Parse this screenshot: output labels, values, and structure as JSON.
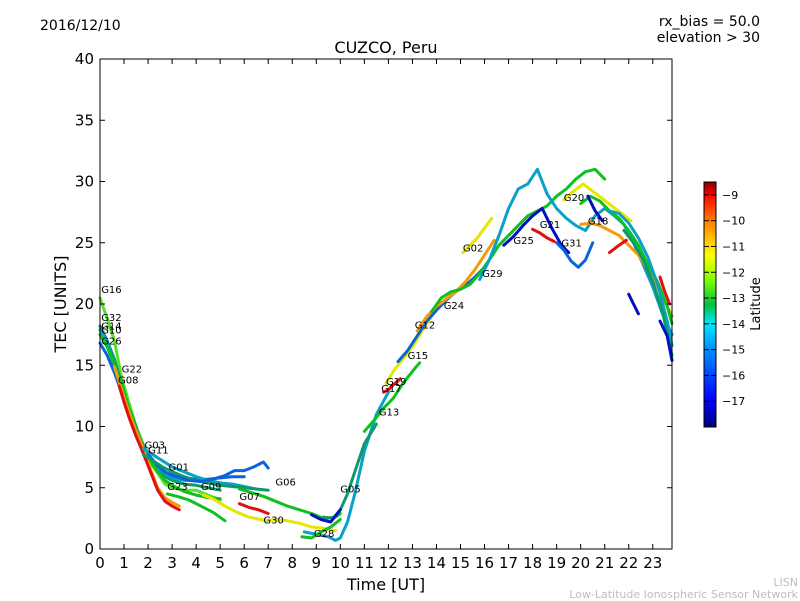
{
  "header": {
    "date": "2016/12/10",
    "note_line1": "rx_bias = 50.0",
    "note_line2": "elevation > 30"
  },
  "credits": {
    "line1": "LISN",
    "line2": "Low-Latitude Ionospheric Sensor Network"
  },
  "chart_data": {
    "type": "line",
    "title": "CUZCO, Peru",
    "xlabel": "Time [UT]",
    "ylabel": "TEC [UNITS]",
    "xlim": [
      0,
      23.8
    ],
    "ylim": [
      0,
      40
    ],
    "xticks": [
      0,
      1,
      2,
      3,
      4,
      5,
      6,
      7,
      8,
      9,
      10,
      11,
      12,
      13,
      14,
      15,
      16,
      17,
      18,
      19,
      20,
      21,
      22,
      23
    ],
    "yticks": [
      0,
      5,
      10,
      15,
      20,
      25,
      30,
      35,
      40
    ],
    "grid": false,
    "colorbar": {
      "label": "Latitude",
      "min": -18,
      "max": -8.5,
      "ticks": [
        -9,
        -10,
        -11,
        -12,
        -13,
        -14,
        -15,
        -16,
        -17
      ],
      "colormap": [
        "#00007f",
        "#0000ff",
        "#007fff",
        "#00ffff",
        "#7fff7f",
        "#ffff00",
        "#ff7f00",
        "#ff0000",
        "#7f0000"
      ]
    },
    "colors": {
      "dark_blue": "#0010c0",
      "blue": "#0a64d8",
      "cyan": "#0aa0c8",
      "teal": "#0c9a6a",
      "green": "#10c020",
      "lime": "#5ae02a",
      "yellow": "#e6e600",
      "orange": "#f59a0a",
      "red": "#e01010"
    },
    "series": [
      {
        "name": "G16",
        "color": "#5ae02a",
        "x": [
          0,
          0.3,
          0.6,
          0.9,
          1.2,
          1.5,
          1.8,
          2.1,
          2.4,
          2.7,
          3.0,
          3.5,
          4.0,
          4.5,
          5.0
        ],
        "y": [
          20.5,
          18.8,
          17,
          14,
          12,
          10,
          8.5,
          7,
          6.2,
          5.3,
          5.0,
          4.8,
          4.8,
          4.4,
          4.0
        ]
      },
      {
        "name": "G32",
        "color": "#0c9a6a",
        "x": [
          0,
          0.3,
          0.6,
          0.9,
          1.2,
          1.5,
          1.8,
          2.1,
          2.4,
          2.7,
          3.0,
          3.5,
          4.0,
          4.5,
          5.0
        ],
        "y": [
          18.2,
          17,
          15.5,
          13.5,
          11.5,
          10,
          8.2,
          7.2,
          6.5,
          5.9,
          5.6,
          5.3,
          5.2,
          5.0,
          4.8
        ]
      },
      {
        "name": "G14",
        "color": "#0aa0c8",
        "x": [
          0,
          0.3,
          0.6,
          0.9,
          1.2,
          1.5,
          1.8,
          2.1,
          2.4,
          2.7,
          3.0,
          3.5,
          4.0,
          4.5,
          5.0,
          5.5
        ],
        "y": [
          17.9,
          16.8,
          15,
          13.2,
          11.2,
          9.8,
          8.3,
          7.3,
          6.6,
          6.2,
          5.8,
          5.6,
          5.6,
          5.4,
          5.3,
          5.2
        ]
      },
      {
        "name": "G10",
        "color": "#10c020",
        "x": [
          0,
          0.3,
          0.6,
          0.9,
          1.2,
          1.5,
          1.8,
          2.1,
          2.4,
          2.7,
          3.0,
          3.5,
          4.0,
          4.5,
          5.0
        ],
        "y": [
          17.5,
          16.5,
          15,
          13.4,
          11.5,
          9.8,
          8.5,
          7.2,
          6.3,
          5.6,
          5.2,
          4.7,
          4.4,
          4.2,
          4.1
        ]
      },
      {
        "name": "G26",
        "color": "#0a64d8",
        "x": [
          0,
          0.3,
          0.6,
          0.9,
          1.2,
          1.5,
          1.8,
          2.1,
          2.4,
          2.7,
          3.0,
          3.5,
          4.0,
          4.5,
          5.0,
          5.5,
          6.0
        ],
        "y": [
          16.8,
          15.8,
          14.4,
          12.8,
          11,
          9.5,
          8.3,
          7.5,
          6.8,
          6.3,
          6.0,
          5.8,
          5.7,
          5.7,
          5.8,
          5.9,
          5.9
        ]
      },
      {
        "name": "G22",
        "color": "#f59a0a",
        "x": [
          0.6,
          0.9,
          1.2,
          1.5,
          1.8,
          2.1,
          2.4,
          2.7,
          3.0,
          3.3
        ],
        "y": [
          14.9,
          13.0,
          11.2,
          9.6,
          8.2,
          6.5,
          5.0,
          4.2,
          3.8,
          3.5
        ]
      },
      {
        "name": "G08",
        "color": "#e01010",
        "x": [
          0.8,
          1.0,
          1.2,
          1.5,
          1.8,
          2.1,
          2.4,
          2.7,
          3.0,
          3.3
        ],
        "y": [
          13.3,
          12.0,
          10.8,
          9.2,
          7.8,
          6.3,
          4.8,
          3.9,
          3.5,
          3.2
        ]
      },
      {
        "name": "G03",
        "color": "#0aa0c8",
        "x": [
          1.8,
          2.2,
          2.6,
          3.0,
          3.5,
          4.0,
          4.5,
          5.0,
          5.5,
          6.0,
          6.5
        ],
        "y": [
          8.2,
          7.7,
          7.2,
          6.7,
          6.3,
          5.9,
          5.6,
          5.4,
          5.3,
          5.1,
          4.9
        ]
      },
      {
        "name": "G11",
        "color": "#0c9a6a",
        "x": [
          1.8,
          2.2,
          2.6,
          3.0,
          3.5,
          4.0,
          4.5,
          5.0,
          5.5,
          6.0,
          6.5,
          7.0
        ],
        "y": [
          7.7,
          7.2,
          6.7,
          6.3,
          5.9,
          5.6,
          5.4,
          5.2,
          5.1,
          5.0,
          4.9,
          4.8
        ]
      },
      {
        "name": "G01",
        "color": "#0a64d8",
        "x": [
          2.8,
          3.2,
          3.7,
          4.2,
          4.7,
          5.2,
          5.6,
          6.0,
          6.4,
          6.8,
          7.0
        ],
        "y": [
          6.2,
          5.9,
          5.6,
          5.5,
          5.7,
          6.0,
          6.4,
          6.4,
          6.7,
          7.1,
          6.6
        ]
      },
      {
        "name": "G23",
        "color": "#10c020",
        "x": [
          2.8,
          3.2,
          3.7,
          4.2,
          4.7,
          5.2
        ],
        "y": [
          4.5,
          4.3,
          4.0,
          3.5,
          3.0,
          2.3
        ]
      },
      {
        "name": "G09",
        "color": "#e6e600",
        "x": [
          4.3,
          4.7,
          5.2,
          5.7,
          6.2,
          6.7,
          7.0
        ],
        "y": [
          4.4,
          4.1,
          3.5,
          3.0,
          2.6,
          2.4,
          2.3
        ]
      },
      {
        "name": "G07",
        "color": "#e01010",
        "x": [
          5.8,
          6.2,
          6.6,
          7.0
        ],
        "y": [
          3.7,
          3.4,
          3.2,
          2.9
        ]
      },
      {
        "name": "G30",
        "color": "#e6e600",
        "x": [
          6.8,
          7.3,
          7.8,
          8.3,
          8.8,
          9.3,
          9.8
        ],
        "y": [
          2.3,
          2.4,
          2.3,
          2.1,
          1.8,
          1.7,
          1.5
        ]
      },
      {
        "name": "G06",
        "color": "#10c020",
        "x": [
          5.8,
          6.3,
          6.8,
          7.3,
          7.8,
          8.3,
          8.8,
          9.3,
          9.8,
          10.0
        ],
        "y": [
          4.9,
          4.6,
          4.3,
          3.9,
          3.5,
          3.2,
          2.9,
          2.5,
          2.6,
          2.9
        ]
      },
      {
        "name": "G28",
        "color": "#0aa0c8",
        "x": [
          8.5,
          9.0,
          9.5,
          9.8,
          10.0,
          10.3,
          10.6,
          11.0,
          11.5,
          12.0
        ],
        "y": [
          1.4,
          1.2,
          1.0,
          0.7,
          0.9,
          2.2,
          4.5,
          8.0,
          11.0,
          12.8
        ]
      },
      {
        "name": "G05",
        "color": "#0c9a6a",
        "x": [
          9.3,
          9.7,
          10.0,
          10.3,
          10.6,
          11.0,
          11.5
        ],
        "y": [
          2.6,
          2.5,
          3.2,
          4.5,
          6.3,
          8.6,
          10.2
        ]
      },
      {
        "name": "G13",
        "color": "#10c020",
        "x": [
          11.0,
          11.4,
          11.8,
          12.2,
          12.6,
          13.0,
          13.3
        ],
        "y": [
          9.6,
          10.5,
          11.5,
          12.3,
          13.5,
          14.5,
          15.2
        ]
      },
      {
        "name": "G17",
        "color": "#e01010",
        "x": [
          11.8,
          12.0,
          12.2,
          12.5
        ],
        "y": [
          12.8,
          13.0,
          13.4,
          13.9
        ]
      },
      {
        "name": "G19",
        "color": "#e6e600",
        "x": [
          11.9,
          12.2,
          12.6,
          13.0,
          13.4,
          13.8,
          14.2,
          14.6,
          15.0,
          15.4,
          15.8
        ],
        "y": [
          13.5,
          14.5,
          15.5,
          16.5,
          17.8,
          19.0,
          20.0,
          20.8,
          21.3,
          21.8,
          22.5
        ]
      },
      {
        "name": "G15",
        "color": "#0a64d8",
        "x": [
          12.4,
          12.8,
          13.2,
          13.6,
          14.0,
          14.4,
          14.8,
          15.2,
          15.6,
          16.0
        ],
        "y": [
          15.3,
          16.2,
          17.4,
          18.6,
          19.5,
          20.3,
          21.0,
          21.5,
          22.2,
          23.0
        ]
      },
      {
        "name": "G12",
        "color": "#f59a0a",
        "x": [
          13.2,
          13.6,
          14.0,
          14.4,
          14.8,
          15.2,
          15.6,
          16.0,
          16.4
        ],
        "y": [
          17.8,
          19.0,
          19.8,
          20.4,
          21.0,
          21.8,
          22.8,
          24.0,
          25.2
        ]
      },
      {
        "name": "G24",
        "color": "#10c020",
        "x": [
          13.8,
          14.2,
          14.6,
          15.0,
          15.4,
          15.8,
          16.2,
          16.6,
          17.0,
          17.4,
          17.8,
          18.2,
          18.6,
          19.0,
          19.4,
          19.8,
          20.2,
          20.6,
          21.0
        ],
        "y": [
          19.4,
          20.5,
          21.0,
          21.2,
          21.6,
          22.5,
          23.6,
          24.8,
          25.6,
          26.4,
          27.2,
          27.6,
          28.0,
          28.8,
          29.4,
          30.2,
          30.8,
          31.0,
          30.2
        ]
      },
      {
        "name": "G02",
        "color": "#e6e600",
        "x": [
          15.1,
          15.4,
          15.7,
          16.0,
          16.3
        ],
        "y": [
          24.2,
          24.8,
          25.4,
          26.2,
          27.0
        ]
      },
      {
        "name": "G29",
        "color": "#0aa0c8",
        "x": [
          15.8,
          16.2,
          16.6,
          17.0,
          17.4,
          17.8,
          18.2,
          18.6,
          19.0,
          19.4,
          19.8,
          20.2,
          20.6,
          21.0,
          21.4,
          21.8,
          22.2,
          22.6,
          23.0,
          23.4,
          23.8
        ],
        "y": [
          22.0,
          23.6,
          25.6,
          27.8,
          29.4,
          29.8,
          31.0,
          29.0,
          27.8,
          27.0,
          26.4,
          26.0,
          27.2,
          27.8,
          27.2,
          26.5,
          25.0,
          23.2,
          21.4,
          19.2,
          17.5
        ]
      },
      {
        "name": "G25",
        "color": "#0010c0",
        "x": [
          16.8,
          17.2,
          17.6,
          18.0,
          18.4,
          18.8,
          19.2,
          19.5
        ],
        "y": [
          24.8,
          25.5,
          26.4,
          27.2,
          27.8,
          26.2,
          24.8,
          24.2
        ]
      },
      {
        "name": "G21",
        "color": "#e01010",
        "x": [
          18.0,
          18.3,
          18.6,
          18.9
        ],
        "y": [
          26.1,
          25.8,
          25.4,
          25.1
        ]
      },
      {
        "name": "G31",
        "color": "#0a64d8",
        "x": [
          19.0,
          19.3,
          19.6,
          19.9,
          20.2,
          20.5
        ],
        "y": [
          25.0,
          24.4,
          23.5,
          23.0,
          23.6,
          25.0
        ]
      },
      {
        "name": "G20",
        "color": "#e6e600",
        "x": [
          19.3,
          19.7,
          20.1,
          20.5,
          20.9,
          21.3,
          21.7,
          22.1
        ],
        "y": [
          28.5,
          29.2,
          29.8,
          29.2,
          28.6,
          28.0,
          27.4,
          26.8
        ]
      },
      {
        "name": "G18",
        "color": "#f59a0a",
        "x": [
          20.0,
          20.4,
          20.8,
          21.2,
          21.6,
          22.0,
          22.4,
          22.8,
          23.2,
          23.6,
          23.8
        ],
        "y": [
          26.5,
          26.6,
          26.4,
          26.0,
          25.6,
          24.8,
          24.0,
          22.8,
          21.4,
          19.8,
          19.0
        ]
      },
      {
        "name": "",
        "color": "#10c020",
        "x": [
          20.0,
          20.4,
          20.8,
          21.2,
          21.6,
          22.0,
          22.4,
          22.8,
          23.2,
          23.6,
          23.8
        ],
        "y": [
          28.2,
          28.8,
          28.4,
          27.6,
          27.0,
          26.0,
          24.8,
          23.2,
          21.8,
          19.8,
          18.4
        ]
      },
      {
        "name": "",
        "color": "#0aa0c8",
        "x": [
          21.2,
          21.6,
          22.0,
          22.4,
          22.8,
          23.2,
          23.6,
          23.8
        ],
        "y": [
          27.6,
          27.4,
          26.6,
          25.4,
          23.8,
          21.6,
          18.6,
          16.6
        ]
      },
      {
        "name": "",
        "color": "#0c9a6a",
        "x": [
          21.8,
          22.2,
          22.6,
          23.0,
          23.4,
          23.8
        ],
        "y": [
          26.0,
          25.0,
          23.6,
          21.8,
          19.4,
          15.8
        ]
      },
      {
        "name": "",
        "color": "#0010c0",
        "x": [
          22.0,
          22.2,
          22.4
        ],
        "y": [
          20.8,
          20.0,
          19.2
        ]
      },
      {
        "name": "",
        "color": "#0010c0",
        "x": [
          23.3,
          23.6,
          23.8
        ],
        "y": [
          18.6,
          17.4,
          15.4
        ]
      },
      {
        "name": "",
        "color": "#e01010",
        "x": [
          23.3,
          23.5,
          23.7
        ],
        "y": [
          22.2,
          21.0,
          20.0
        ]
      },
      {
        "name": "",
        "color": "#e01010",
        "x": [
          21.2,
          21.6,
          21.9
        ],
        "y": [
          24.2,
          24.8,
          25.2
        ]
      },
      {
        "name": "",
        "color": "#0010c0",
        "x": [
          20.3,
          20.6,
          20.9
        ],
        "y": [
          28.8,
          27.6,
          26.8
        ]
      },
      {
        "name": "",
        "color": "#0010c0",
        "x": [
          8.8,
          9.2,
          9.6,
          10.0
        ],
        "y": [
          2.8,
          2.4,
          2.2,
          3.2
        ]
      },
      {
        "name": "",
        "color": "#10c020",
        "x": [
          8.4,
          8.8,
          9.2,
          9.6,
          10.0
        ],
        "y": [
          1.0,
          0.9,
          1.4,
          1.8,
          2.4
        ]
      }
    ],
    "labels": [
      {
        "text": "G16",
        "x": 0.05,
        "y": 20.9
      },
      {
        "text": "G32",
        "x": 0.05,
        "y": 18.6
      },
      {
        "text": "G14",
        "x": 0.05,
        "y": 17.9
      },
      {
        "text": "G10",
        "x": 0.05,
        "y": 17.6
      },
      {
        "text": "G26",
        "x": 0.05,
        "y": 16.7
      },
      {
        "text": "G22",
        "x": 0.9,
        "y": 14.4
      },
      {
        "text": "G08",
        "x": 0.75,
        "y": 13.5
      },
      {
        "text": "G03",
        "x": 1.85,
        "y": 8.2
      },
      {
        "text": "G11",
        "x": 2.0,
        "y": 7.8
      },
      {
        "text": "G01",
        "x": 2.85,
        "y": 6.4
      },
      {
        "text": "G23",
        "x": 2.8,
        "y": 4.8
      },
      {
        "text": "G09",
        "x": 4.2,
        "y": 4.8
      },
      {
        "text": "G07",
        "x": 5.8,
        "y": 4.0
      },
      {
        "text": "G06",
        "x": 7.3,
        "y": 5.2
      },
      {
        "text": "G30",
        "x": 6.8,
        "y": 2.1
      },
      {
        "text": "G28",
        "x": 8.9,
        "y": 1.0
      },
      {
        "text": "G05",
        "x": 10.0,
        "y": 4.6
      },
      {
        "text": "G13",
        "x": 11.6,
        "y": 10.9
      },
      {
        "text": "G17",
        "x": 11.7,
        "y": 12.8
      },
      {
        "text": "G19",
        "x": 11.9,
        "y": 13.4
      },
      {
        "text": "G15",
        "x": 12.8,
        "y": 15.5
      },
      {
        "text": "G12",
        "x": 13.1,
        "y": 18.0
      },
      {
        "text": "G24",
        "x": 14.3,
        "y": 19.6
      },
      {
        "text": "G02",
        "x": 15.1,
        "y": 24.3
      },
      {
        "text": "G29",
        "x": 15.9,
        "y": 22.2
      },
      {
        "text": "G25",
        "x": 17.2,
        "y": 24.9
      },
      {
        "text": "G21",
        "x": 18.3,
        "y": 26.2
      },
      {
        "text": "G31",
        "x": 19.2,
        "y": 24.7
      },
      {
        "text": "G20",
        "x": 19.3,
        "y": 28.4
      },
      {
        "text": "G18",
        "x": 20.3,
        "y": 26.5
      }
    ]
  }
}
